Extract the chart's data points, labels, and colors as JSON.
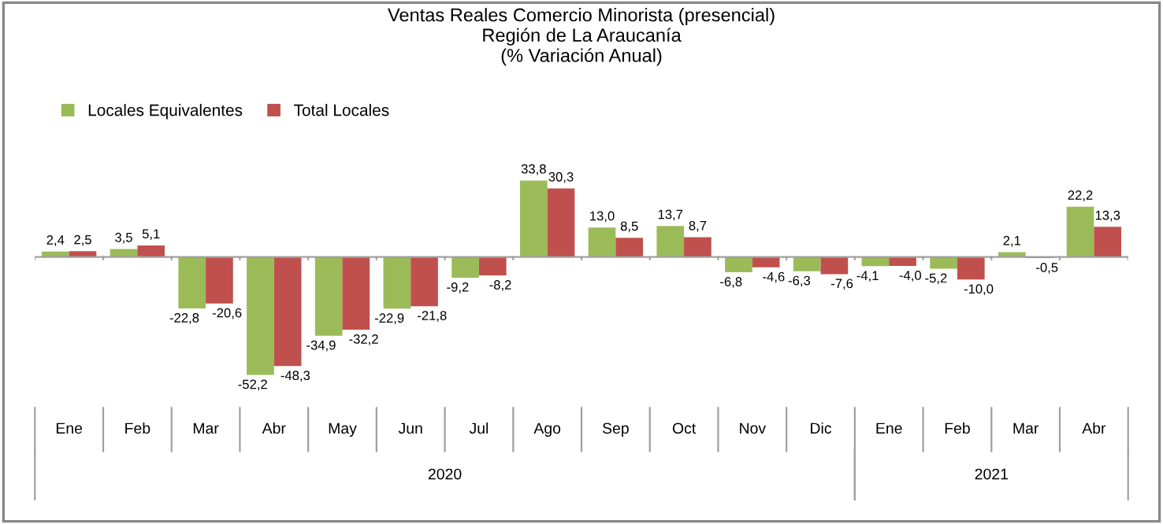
{
  "chart_data": {
    "type": "bar",
    "title": "Ventas Reales Comercio Minorista (presencial)\nRegión de La Araucanía\n(% Variación Anual)",
    "categories": [
      "Ene",
      "Feb",
      "Mar",
      "Abr",
      "May",
      "Jun",
      "Jul",
      "Ago",
      "Sep",
      "Oct",
      "Nov",
      "Dic",
      "Ene",
      "Feb",
      "Mar",
      "Abr"
    ],
    "series": [
      {
        "name": "Locales Equivalentes",
        "color": "#9bbb59",
        "values": [
          2.4,
          3.5,
          -22.8,
          -52.2,
          -34.9,
          -22.9,
          -9.2,
          33.8,
          13.0,
          13.7,
          -6.8,
          -6.3,
          -4.1,
          -5.2,
          2.1,
          22.2
        ],
        "value_labels": [
          "2,4",
          "3,5",
          "-22,8",
          "-52,2",
          "-34,9",
          "-22,9",
          "-9,2",
          "33,8",
          "13,0",
          "13,7",
          "-6,8",
          "-6,3",
          "-4,1",
          "-5,2",
          "2,1",
          "22,2"
        ]
      },
      {
        "name": "Total Locales",
        "color": "#c0504d",
        "values": [
          2.5,
          5.1,
          -20.6,
          -48.3,
          -32.2,
          -21.8,
          -8.2,
          30.3,
          8.5,
          8.7,
          -4.6,
          -7.6,
          -4.0,
          -10.0,
          -0.5,
          13.3
        ],
        "value_labels": [
          "2,5",
          "5,1",
          "-20,6",
          "-48,3",
          "-32,2",
          "-21,8",
          "-8,2",
          "30,3",
          "8,5",
          "8,7",
          "-4,6",
          "-7,6",
          "-4,0",
          "-10,0",
          "-0,5",
          "13,3"
        ]
      }
    ],
    "annotations": [
      "2020",
      "2021"
    ],
    "legend": "top left"
  }
}
